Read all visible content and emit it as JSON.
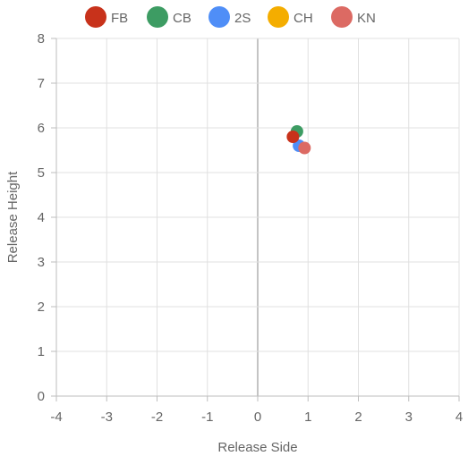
{
  "chart_data": {
    "type": "scatter",
    "title": "",
    "xlabel": "Release Side",
    "ylabel": "Release Height",
    "xlim": [
      -4,
      4
    ],
    "ylim": [
      0,
      8
    ],
    "x_ticks": [
      -4,
      -3,
      -2,
      -1,
      0,
      1,
      2,
      3,
      4
    ],
    "y_ticks": [
      0,
      1,
      2,
      3,
      4,
      5,
      6,
      7,
      8
    ],
    "grid": true,
    "legend_position": "top",
    "series": [
      {
        "name": "FB",
        "color": "#c8321b",
        "points": [
          {
            "x": 0.7,
            "y": 5.8
          }
        ]
      },
      {
        "name": "CB",
        "color": "#3d9c63",
        "points": [
          {
            "x": 0.78,
            "y": 5.92
          }
        ]
      },
      {
        "name": "2S",
        "color": "#4f8ef7",
        "points": [
          {
            "x": 0.82,
            "y": 5.6
          }
        ]
      },
      {
        "name": "CH",
        "color": "#f4ad00",
        "points": []
      },
      {
        "name": "KN",
        "color": "#dc6a63",
        "points": [
          {
            "x": 0.93,
            "y": 5.55
          }
        ]
      }
    ]
  }
}
